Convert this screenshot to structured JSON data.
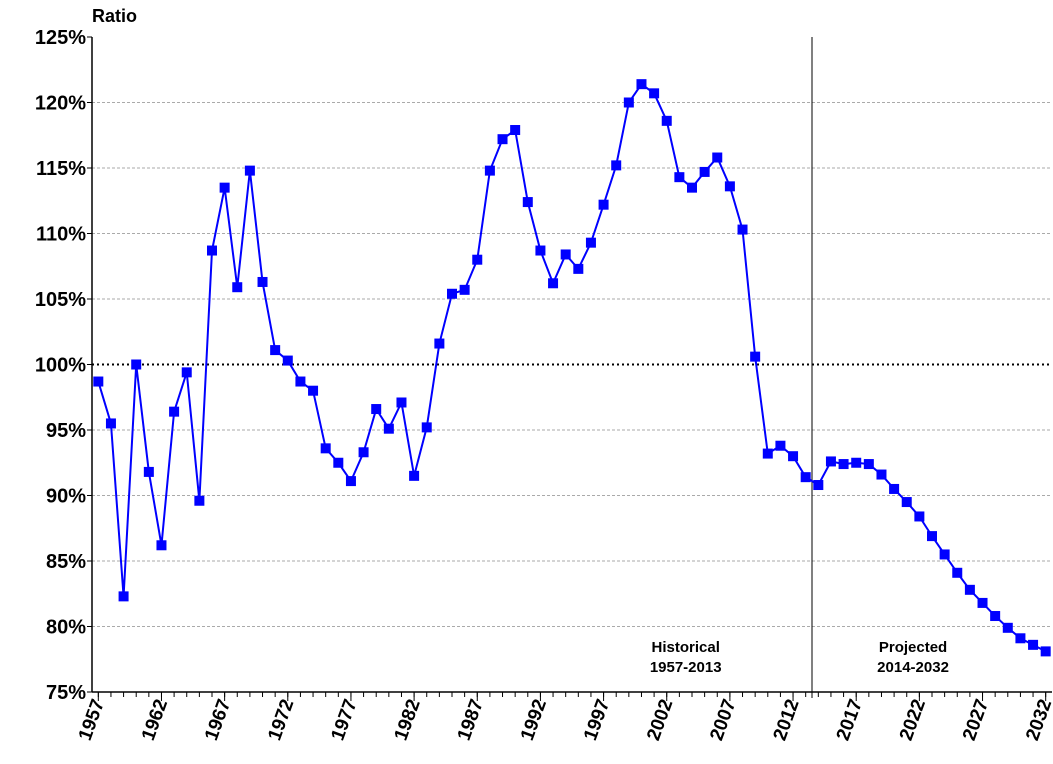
{
  "chart_data": {
    "type": "line",
    "y_label": "Ratio",
    "x": [
      1957,
      1958,
      1959,
      1960,
      1961,
      1962,
      1963,
      1964,
      1965,
      1966,
      1967,
      1968,
      1969,
      1970,
      1971,
      1972,
      1973,
      1974,
      1975,
      1976,
      1977,
      1978,
      1979,
      1980,
      1981,
      1982,
      1983,
      1984,
      1985,
      1986,
      1987,
      1988,
      1989,
      1990,
      1991,
      1992,
      1993,
      1994,
      1995,
      1996,
      1997,
      1998,
      1999,
      2000,
      2001,
      2002,
      2003,
      2004,
      2005,
      2006,
      2007,
      2008,
      2009,
      2010,
      2011,
      2012,
      2013,
      2014,
      2015,
      2016,
      2017,
      2018,
      2019,
      2020,
      2021,
      2022,
      2023,
      2024,
      2025,
      2026,
      2027,
      2028,
      2029,
      2030,
      2031,
      2032
    ],
    "series": [
      {
        "name": "Ratio",
        "color": "#0000ff",
        "values": [
          98.7,
          95.5,
          82.3,
          100.0,
          91.8,
          86.2,
          96.4,
          99.4,
          89.6,
          108.7,
          113.5,
          105.9,
          114.8,
          106.3,
          101.1,
          100.3,
          98.7,
          98.0,
          93.6,
          92.5,
          91.1,
          93.3,
          96.6,
          95.1,
          97.1,
          91.5,
          95.2,
          101.6,
          105.4,
          105.7,
          108.0,
          114.8,
          117.2,
          117.9,
          112.4,
          108.7,
          106.2,
          108.4,
          107.3,
          109.3,
          112.2,
          115.2,
          120.0,
          121.4,
          120.7,
          118.6,
          114.3,
          113.5,
          114.7,
          115.8,
          113.6,
          110.3,
          100.6,
          93.2,
          93.8,
          93.0,
          91.4,
          90.8,
          92.6,
          92.4,
          92.5,
          92.4,
          91.6,
          90.5,
          89.5,
          88.4,
          86.9,
          85.5,
          84.1,
          82.8,
          81.8,
          80.8,
          79.9,
          79.1,
          78.6,
          78.1
        ]
      }
    ],
    "xlim": [
      1956.5,
      2032.5
    ],
    "xticks": [
      1957,
      1962,
      1967,
      1972,
      1977,
      1982,
      1987,
      1992,
      1997,
      2002,
      2007,
      2012,
      2017,
      2022,
      2027,
      2032
    ],
    "ylim": [
      75,
      125
    ],
    "yticks": [
      {
        "value": 75,
        "label": "75%"
      },
      {
        "value": 80,
        "label": "80%"
      },
      {
        "value": 85,
        "label": "85%"
      },
      {
        "value": 90,
        "label": "90%"
      },
      {
        "value": 95,
        "label": "95%"
      },
      {
        "value": 100,
        "label": "100%"
      },
      {
        "value": 105,
        "label": "105%"
      },
      {
        "value": 110,
        "label": "110%"
      },
      {
        "value": 115,
        "label": "115%"
      },
      {
        "value": 120,
        "label": "120%"
      },
      {
        "value": 125,
        "label": "125%"
      }
    ],
    "grid": true,
    "reference_y": 100,
    "divider_x": 2013.5,
    "annotations": [
      {
        "x": 2003.5,
        "lines": [
          "Historical",
          "1957-2013"
        ]
      },
      {
        "x": 2021.5,
        "lines": [
          "Projected",
          "2014-2032"
        ]
      }
    ]
  }
}
